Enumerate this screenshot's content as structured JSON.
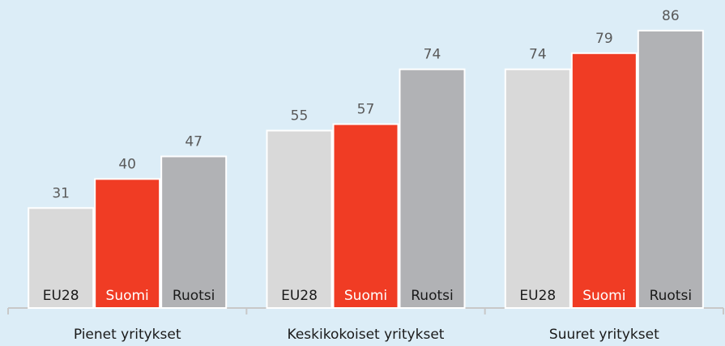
{
  "chart_data": {
    "type": "bar",
    "categories": [
      "Pienet yritykset",
      "Keskikokoiset yritykset",
      "Suuret yritykset"
    ],
    "series": [
      {
        "name": "EU28",
        "color": "#d9d9d9",
        "values": [
          31,
          55,
          74
        ]
      },
      {
        "name": "Suomi",
        "color": "#f03c24",
        "values": [
          40,
          57,
          79
        ]
      },
      {
        "name": "Ruotsi",
        "color": "#b1b2b5",
        "values": [
          47,
          74,
          86
        ]
      }
    ]
  }
}
